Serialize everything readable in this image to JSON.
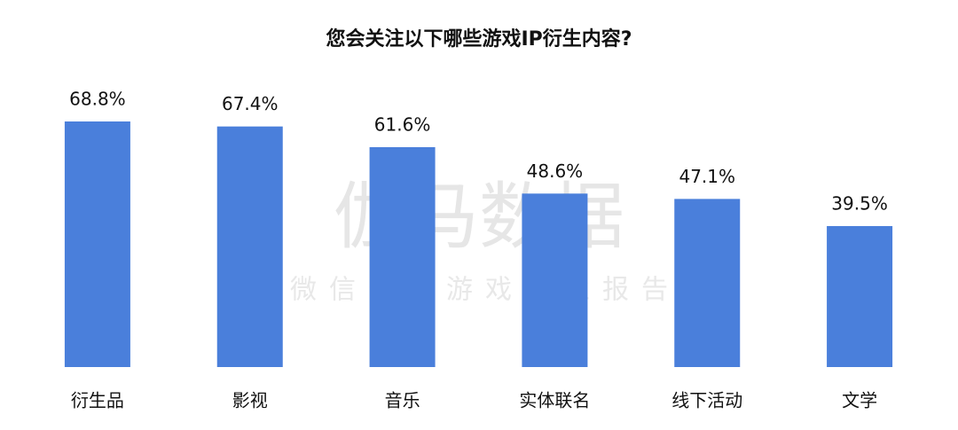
{
  "chart_data": {
    "type": "bar",
    "title": "您会关注以下哪些游戏IP衍生内容?",
    "categories": [
      "衍生品",
      "影视",
      "音乐",
      "实体联名",
      "线下活动",
      "文学"
    ],
    "values": [
      68.8,
      67.4,
      61.6,
      48.6,
      47.1,
      39.5
    ],
    "value_labels": [
      "68.8%",
      "67.4%",
      "61.6%",
      "48.6%",
      "47.1%",
      "39.5%"
    ],
    "color": "#4a7fdb",
    "watermark": {
      "title": "伽马数据",
      "subtitle": "微信号：游戏产业报告"
    }
  }
}
